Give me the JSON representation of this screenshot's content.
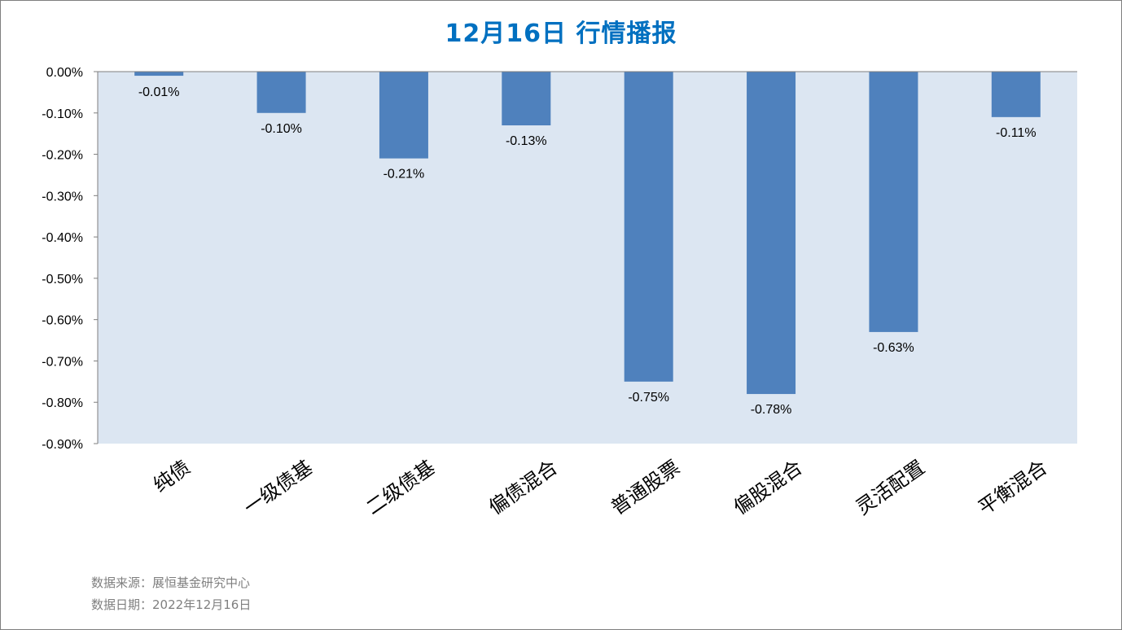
{
  "title": "12月16日  行情播报",
  "source": "数据来源：展恒基金研究中心",
  "date_line": "数据日期：2022年12月16日",
  "colors": {
    "bar": "#4f81bd",
    "plot_bg": "#dce6f2",
    "title": "#0070c0"
  },
  "chart_data": {
    "type": "bar",
    "categories": [
      "纯债",
      "一级债基",
      "二级债基",
      "偏债混合",
      "普通股票",
      "偏股混合",
      "灵活配置",
      "平衡混合"
    ],
    "values": [
      -0.01,
      -0.1,
      -0.21,
      -0.13,
      -0.75,
      -0.78,
      -0.63,
      -0.11
    ],
    "data_labels": [
      "-0.01%",
      "-0.10%",
      "-0.21%",
      "-0.13%",
      "-0.75%",
      "-0.78%",
      "-0.63%",
      "-0.11%"
    ],
    "ylim": [
      -0.9,
      0.0
    ],
    "yticks": [
      0.0,
      -0.1,
      -0.2,
      -0.3,
      -0.4,
      -0.5,
      -0.6,
      -0.7,
      -0.8,
      -0.9
    ],
    "ytick_labels": [
      "0.00%",
      "-0.10%",
      "-0.20%",
      "-0.30%",
      "-0.40%",
      "-0.50%",
      "-0.60%",
      "-0.70%",
      "-0.80%",
      "-0.90%"
    ],
    "grid": false,
    "legend": "none"
  }
}
